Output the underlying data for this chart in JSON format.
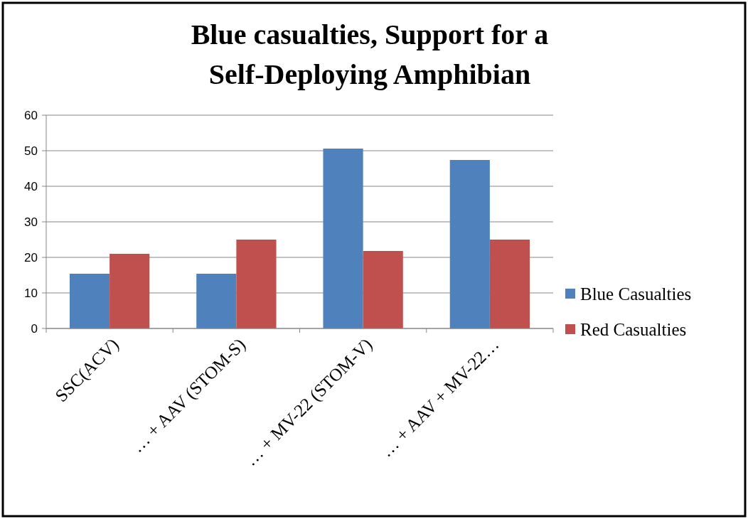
{
  "chart_data": {
    "type": "bar",
    "title": "Blue casualties, Support for a\nSelf-Deploying Amphibian",
    "categories": [
      "SSC(ACV)",
      "… + AAV (STOM-S)",
      "… + MV-22 (STOM-V)",
      "… + AAV + MV-22…"
    ],
    "series": [
      {
        "name": "Blue Casualties",
        "color": "#4f81bd",
        "values": [
          15.4,
          15.4,
          50.6,
          47.4
        ]
      },
      {
        "name": "Red Casualties",
        "color": "#c0504d",
        "values": [
          21,
          25,
          21.8,
          25
        ]
      }
    ],
    "ylim": [
      0,
      60
    ],
    "yticks": [
      0,
      10,
      20,
      30,
      40,
      50,
      60
    ],
    "grid": "y",
    "legend": "right"
  }
}
